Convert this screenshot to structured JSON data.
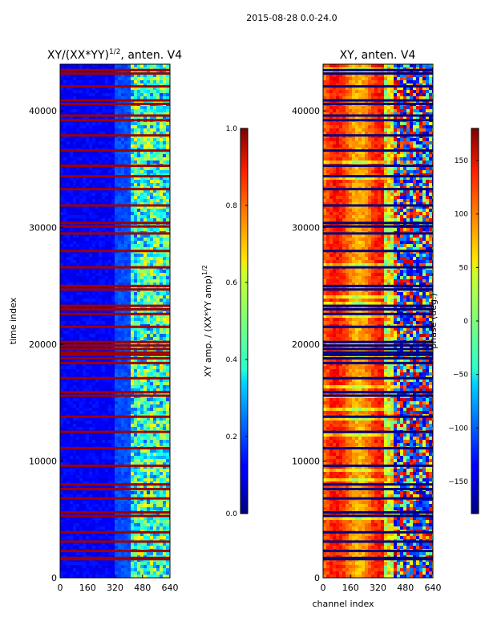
{
  "figure": {
    "suptitle": "2015-08-28 0.0-24.0"
  },
  "chart_data": [
    {
      "type": "heatmap",
      "title_prefix": "XY/(XX*YY)",
      "title_exponent": "1/2",
      "title_suffix": ", anten. V4",
      "xlabel": "",
      "ylabel": "time index",
      "xlim": [
        0,
        640
      ],
      "ylim": [
        0,
        44000
      ],
      "xticks": [
        0,
        160,
        320,
        480,
        640
      ],
      "xtick_labels": [
        "0",
        "160",
        "320",
        "480",
        "640"
      ],
      "yticks": [
        0,
        10000,
        20000,
        30000,
        40000
      ],
      "ytick_labels": [
        "0",
        "10000",
        "20000",
        "30000",
        "40000"
      ],
      "colorbar": {
        "label_prefix": "XY amp. / (XX*YY amp)",
        "label_exponent": "1/2",
        "min": 0.0,
        "max": 1.0,
        "ticks": [
          0.0,
          0.2,
          0.4,
          0.6,
          0.8,
          1.0
        ],
        "tick_labels": [
          "0.0",
          "0.2",
          "0.4",
          "0.6",
          "0.8",
          "1.0"
        ],
        "colormap": "jet"
      },
      "background_level": 0.12,
      "high_channel_band": [
        400,
        640
      ],
      "high_band_level": 0.45,
      "flagged_rows": [
        1600,
        1700,
        2300,
        3100,
        3900,
        5300,
        5600,
        6800,
        7600,
        8000,
        9600,
        11100,
        12500,
        13800,
        15600,
        15900,
        17100,
        18400,
        18800,
        19100,
        19300,
        19600,
        19900,
        20200,
        21500,
        22600,
        23000,
        23300,
        24700,
        25000,
        26600,
        28000,
        29500,
        30100,
        30400,
        31900,
        33300,
        34400,
        35300,
        36600,
        37900,
        39200,
        39600,
        40600,
        40900,
        42100,
        43200,
        43500
      ],
      "flagged_level": 0.97
    },
    {
      "type": "heatmap",
      "title": "XY, anten. V4",
      "xlabel": "channel index",
      "ylabel": "",
      "xlim": [
        0,
        640
      ],
      "ylim": [
        0,
        44000
      ],
      "xticks": [
        0,
        160,
        320,
        480,
        640
      ],
      "xtick_labels": [
        "0",
        "160",
        "320",
        "480",
        "640"
      ],
      "yticks": [
        0,
        10000,
        20000,
        30000,
        40000
      ],
      "ytick_labels": [
        "0",
        "10000",
        "20000",
        "30000",
        "40000"
      ],
      "colorbar": {
        "label": "phase (deg.)",
        "min": -180,
        "max": 180,
        "ticks": [
          -150,
          -100,
          -50,
          0,
          50,
          100,
          150
        ],
        "tick_labels": [
          "−150",
          "−100",
          "−50",
          "0",
          "50",
          "100",
          "150"
        ],
        "colormap": "jet"
      },
      "background_phase_deg": 80,
      "noisy_channel_band": [
        400,
        640
      ],
      "flagged_rows": [
        1600,
        1700,
        2300,
        3100,
        3900,
        5300,
        5600,
        6800,
        7600,
        8000,
        9600,
        11100,
        12500,
        13800,
        15600,
        15900,
        17100,
        18400,
        18800,
        19100,
        19300,
        19600,
        19900,
        20200,
        21500,
        22600,
        23000,
        23300,
        24700,
        25000,
        26600,
        28000,
        29500,
        30100,
        30400,
        31900,
        33300,
        34400,
        35300,
        36600,
        37900,
        39200,
        39600,
        40600,
        40900,
        42100,
        43200,
        43500
      ],
      "flagged_phase_deg": -180
    }
  ]
}
